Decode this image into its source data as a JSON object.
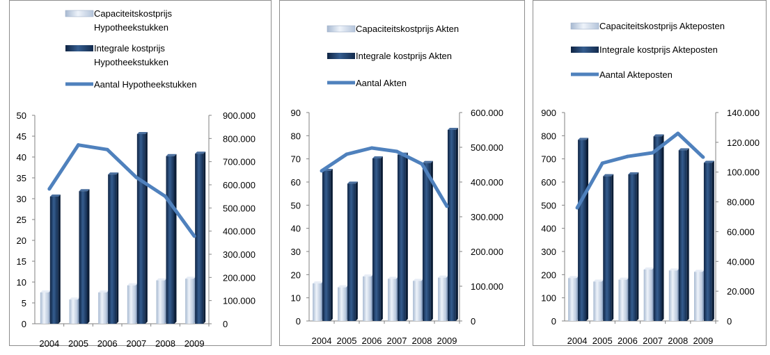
{
  "colors": {
    "capacity": "#cdd9ea",
    "integral": "#1f3b63",
    "line": "#4f81bd",
    "axis": "#808080"
  },
  "chart_data": [
    {
      "type": "bar",
      "categories": [
        "2004",
        "2005",
        "2006",
        "2007",
        "2008",
        "2009"
      ],
      "series": [
        {
          "name": "Capaciteitskostprijs Hypotheekstukken",
          "kind": "bar",
          "axis": "left",
          "values": [
            7.5,
            5.8,
            7.5,
            9.2,
            10.4,
            10.8
          ]
        },
        {
          "name": "Integrale kostprijs Hypotheekstukken",
          "kind": "bar",
          "axis": "left",
          "values": [
            30.5,
            31.8,
            35.8,
            45.5,
            40.2,
            40.8
          ]
        },
        {
          "name": "Aantal Hypotheekstukken",
          "kind": "line",
          "axis": "right",
          "values": [
            582000,
            772000,
            752000,
            632000,
            550000,
            378000
          ]
        }
      ],
      "legend": [
        {
          "lines": [
            "Capaciteitskostprijs",
            "Hypotheekstukken"
          ]
        },
        {
          "lines": [
            "Integrale kostprijs",
            "Hypotheekstukken"
          ]
        },
        {
          "lines": [
            "Aantal Hypotheekstukken"
          ]
        }
      ],
      "ylim": [
        0,
        50
      ],
      "y_ticks": [
        "0",
        "5",
        "10",
        "15",
        "20",
        "25",
        "30",
        "35",
        "40",
        "45",
        "50"
      ],
      "y2lim": [
        0,
        900000
      ],
      "y2_ticks": [
        "0",
        "100.000",
        "200.000",
        "300.000",
        "400.000",
        "500.000",
        "600.000",
        "700.000",
        "800.000",
        "900.000"
      ],
      "grid": false,
      "legend_position": "top"
    },
    {
      "type": "bar",
      "categories": [
        "2004",
        "2005",
        "2006",
        "2007",
        "2008",
        "2009"
      ],
      "series": [
        {
          "name": "Capaciteitskostprijs Akten",
          "kind": "bar",
          "axis": "left",
          "values": [
            16.2,
            14.5,
            19.2,
            18.2,
            17.3,
            18.7
          ]
        },
        {
          "name": "Integrale kostprijs Akten",
          "kind": "bar",
          "axis": "left",
          "values": [
            64.8,
            59.3,
            70.2,
            71.8,
            68.2,
            82.5
          ]
        },
        {
          "name": "Aantal Akten",
          "kind": "line",
          "axis": "right",
          "values": [
            432000,
            480000,
            498000,
            488000,
            452000,
            330000
          ]
        }
      ],
      "legend": [
        {
          "lines": [
            "Capaciteitskostprijs Akten"
          ]
        },
        {
          "lines": [
            "Integrale kostprijs Akten"
          ]
        },
        {
          "lines": [
            "Aantal Akten"
          ]
        }
      ],
      "ylim": [
        0,
        90
      ],
      "y_ticks": [
        "0",
        "10",
        "20",
        "30",
        "40",
        "50",
        "60",
        "70",
        "80",
        "90"
      ],
      "y2lim": [
        0,
        600000
      ],
      "y2_ticks": [
        "0",
        "100.000",
        "200.000",
        "300.000",
        "400.000",
        "500.000",
        "600.000"
      ],
      "grid": false,
      "legend_position": "top"
    },
    {
      "type": "bar",
      "categories": [
        "2004",
        "2005",
        "2006",
        "2007",
        "2008",
        "2009"
      ],
      "series": [
        {
          "name": "Capaciteitskostprijs Akteposten",
          "kind": "bar",
          "axis": "left",
          "values": [
            185,
            170,
            178,
            222,
            218,
            212
          ]
        },
        {
          "name": "Integrale kostprijs Akteposten",
          "kind": "bar",
          "axis": "left",
          "values": [
            782,
            625,
            633,
            797,
            737,
            683
          ]
        },
        {
          "name": "Aantal Akteposten",
          "kind": "line",
          "axis": "right",
          "values": [
            76000,
            106000,
            110500,
            113000,
            126000,
            110000
          ]
        }
      ],
      "legend": [
        {
          "lines": [
            "Capaciteitskostprijs Akteposten"
          ]
        },
        {
          "lines": [
            "Integrale kostprijs Akteposten"
          ]
        },
        {
          "lines": [
            "Aantal Akteposten"
          ]
        }
      ],
      "ylim": [
        0,
        900
      ],
      "y_ticks": [
        "0",
        "100",
        "200",
        "300",
        "400",
        "500",
        "600",
        "700",
        "800",
        "900"
      ],
      "y2lim": [
        0,
        140000
      ],
      "y2_ticks": [
        "0",
        "20.000",
        "40.000",
        "60.000",
        "80.000",
        "100.000",
        "120.000",
        "140.000"
      ],
      "grid": false,
      "legend_position": "top"
    }
  ]
}
